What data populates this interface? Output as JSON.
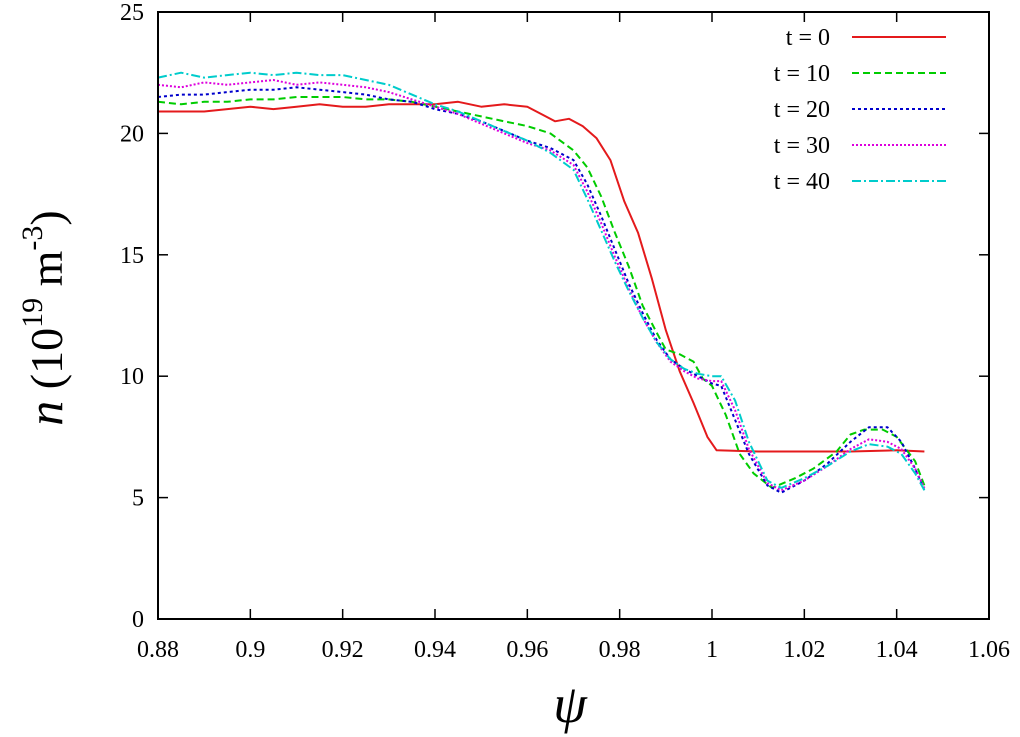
{
  "chart_data": {
    "type": "line",
    "xlabel": "ψ",
    "ylabel": {
      "var": "n",
      "open": " (10",
      "exp1": "19",
      "mid": " m",
      "exp2": "-3",
      "close": ")"
    },
    "xlim": [
      0.88,
      1.06
    ],
    "ylim": [
      0,
      25
    ],
    "xticks": [
      0.88,
      0.9,
      0.92,
      0.94,
      0.96,
      0.98,
      1,
      1.02,
      1.04,
      1.06
    ],
    "xtick_labels": [
      "0.88",
      "0.9",
      "0.92",
      "0.94",
      "0.96",
      "0.98",
      "1",
      "1.02",
      "1.04",
      "1.06"
    ],
    "yticks": [
      0,
      5,
      10,
      15,
      20,
      25
    ],
    "ytick_labels": [
      "0",
      "5",
      "10",
      "15",
      "20",
      "25"
    ],
    "grid": false,
    "legend_position": "top-right",
    "series": [
      {
        "name": "t = 0",
        "color": "#e41a1c",
        "dash": "solid",
        "points": [
          [
            0.88,
            20.9
          ],
          [
            0.885,
            20.9
          ],
          [
            0.89,
            20.9
          ],
          [
            0.895,
            21.0
          ],
          [
            0.9,
            21.1
          ],
          [
            0.905,
            21.0
          ],
          [
            0.91,
            21.1
          ],
          [
            0.915,
            21.2
          ],
          [
            0.92,
            21.1
          ],
          [
            0.925,
            21.1
          ],
          [
            0.93,
            21.2
          ],
          [
            0.935,
            21.2
          ],
          [
            0.94,
            21.2
          ],
          [
            0.945,
            21.3
          ],
          [
            0.95,
            21.1
          ],
          [
            0.955,
            21.2
          ],
          [
            0.96,
            21.1
          ],
          [
            0.963,
            20.8
          ],
          [
            0.966,
            20.5
          ],
          [
            0.969,
            20.6
          ],
          [
            0.972,
            20.3
          ],
          [
            0.975,
            19.8
          ],
          [
            0.978,
            18.9
          ],
          [
            0.981,
            17.2
          ],
          [
            0.984,
            15.9
          ],
          [
            0.987,
            14.0
          ],
          [
            0.99,
            11.9
          ],
          [
            0.993,
            10.2
          ],
          [
            0.996,
            8.9
          ],
          [
            0.999,
            7.5
          ],
          [
            1.001,
            6.95
          ],
          [
            1.01,
            6.9
          ],
          [
            1.02,
            6.9
          ],
          [
            1.03,
            6.9
          ],
          [
            1.04,
            6.95
          ],
          [
            1.046,
            6.9
          ]
        ]
      },
      {
        "name": "t = 10",
        "color": "#00cc00",
        "dash": "7,4",
        "points": [
          [
            0.88,
            21.3
          ],
          [
            0.885,
            21.2
          ],
          [
            0.89,
            21.3
          ],
          [
            0.895,
            21.3
          ],
          [
            0.9,
            21.4
          ],
          [
            0.905,
            21.4
          ],
          [
            0.91,
            21.5
          ],
          [
            0.915,
            21.5
          ],
          [
            0.92,
            21.5
          ],
          [
            0.925,
            21.4
          ],
          [
            0.93,
            21.4
          ],
          [
            0.935,
            21.3
          ],
          [
            0.94,
            21.1
          ],
          [
            0.945,
            20.9
          ],
          [
            0.95,
            20.7
          ],
          [
            0.955,
            20.5
          ],
          [
            0.96,
            20.3
          ],
          [
            0.965,
            20.0
          ],
          [
            0.97,
            19.3
          ],
          [
            0.973,
            18.6
          ],
          [
            0.976,
            17.4
          ],
          [
            0.979,
            15.9
          ],
          [
            0.982,
            14.5
          ],
          [
            0.985,
            12.9
          ],
          [
            0.988,
            11.8
          ],
          [
            0.99,
            11.1
          ],
          [
            0.993,
            10.9
          ],
          [
            0.996,
            10.6
          ],
          [
            0.998,
            9.9
          ],
          [
            1.0,
            9.6
          ],
          [
            1.003,
            8.4
          ],
          [
            1.006,
            6.8
          ],
          [
            1.009,
            6.0
          ],
          [
            1.013,
            5.4
          ],
          [
            1.018,
            5.8
          ],
          [
            1.022,
            6.2
          ],
          [
            1.027,
            6.9
          ],
          [
            1.03,
            7.6
          ],
          [
            1.033,
            7.8
          ],
          [
            1.037,
            7.8
          ],
          [
            1.04,
            7.5
          ],
          [
            1.044,
            6.5
          ],
          [
            1.046,
            5.5
          ]
        ]
      },
      {
        "name": "t = 20",
        "color": "#0000cc",
        "dash": "3,3",
        "points": [
          [
            0.88,
            21.5
          ],
          [
            0.885,
            21.6
          ],
          [
            0.89,
            21.6
          ],
          [
            0.895,
            21.7
          ],
          [
            0.9,
            21.8
          ],
          [
            0.905,
            21.8
          ],
          [
            0.91,
            21.9
          ],
          [
            0.915,
            21.8
          ],
          [
            0.92,
            21.7
          ],
          [
            0.925,
            21.6
          ],
          [
            0.93,
            21.4
          ],
          [
            0.935,
            21.3
          ],
          [
            0.94,
            21.0
          ],
          [
            0.945,
            20.8
          ],
          [
            0.95,
            20.5
          ],
          [
            0.955,
            20.1
          ],
          [
            0.96,
            19.7
          ],
          [
            0.965,
            19.4
          ],
          [
            0.97,
            18.9
          ],
          [
            0.973,
            17.9
          ],
          [
            0.976,
            16.6
          ],
          [
            0.979,
            15.2
          ],
          [
            0.982,
            13.8
          ],
          [
            0.985,
            12.6
          ],
          [
            0.988,
            11.5
          ],
          [
            0.991,
            10.7
          ],
          [
            0.994,
            10.3
          ],
          [
            0.997,
            10.0
          ],
          [
            1.0,
            9.7
          ],
          [
            1.002,
            9.6
          ],
          [
            1.005,
            8.2
          ],
          [
            1.008,
            6.8
          ],
          [
            1.012,
            5.5
          ],
          [
            1.015,
            5.2
          ],
          [
            1.02,
            5.7
          ],
          [
            1.025,
            6.4
          ],
          [
            1.03,
            7.3
          ],
          [
            1.034,
            7.9
          ],
          [
            1.038,
            7.9
          ],
          [
            1.041,
            7.3
          ],
          [
            1.044,
            6.2
          ],
          [
            1.046,
            5.3
          ]
        ]
      },
      {
        "name": "t = 30",
        "color": "#dd00dd",
        "dash": "2,2",
        "points": [
          [
            0.88,
            22.0
          ],
          [
            0.885,
            21.9
          ],
          [
            0.89,
            22.1
          ],
          [
            0.895,
            22.0
          ],
          [
            0.9,
            22.1
          ],
          [
            0.905,
            22.2
          ],
          [
            0.91,
            22.0
          ],
          [
            0.915,
            22.1
          ],
          [
            0.92,
            22.0
          ],
          [
            0.925,
            21.9
          ],
          [
            0.93,
            21.7
          ],
          [
            0.935,
            21.4
          ],
          [
            0.94,
            21.1
          ],
          [
            0.945,
            20.8
          ],
          [
            0.95,
            20.4
          ],
          [
            0.955,
            20.0
          ],
          [
            0.96,
            19.6
          ],
          [
            0.965,
            19.3
          ],
          [
            0.97,
            18.7
          ],
          [
            0.973,
            17.6
          ],
          [
            0.976,
            16.3
          ],
          [
            0.979,
            14.9
          ],
          [
            0.982,
            13.6
          ],
          [
            0.985,
            12.4
          ],
          [
            0.988,
            11.4
          ],
          [
            0.991,
            10.6
          ],
          [
            0.994,
            10.2
          ],
          [
            0.997,
            9.9
          ],
          [
            1.0,
            9.8
          ],
          [
            1.002,
            9.8
          ],
          [
            1.005,
            8.6
          ],
          [
            1.008,
            7.0
          ],
          [
            1.012,
            5.6
          ],
          [
            1.015,
            5.3
          ],
          [
            1.02,
            5.7
          ],
          [
            1.025,
            6.3
          ],
          [
            1.03,
            7.0
          ],
          [
            1.034,
            7.4
          ],
          [
            1.038,
            7.3
          ],
          [
            1.041,
            7.0
          ],
          [
            1.044,
            6.2
          ],
          [
            1.046,
            5.4
          ]
        ]
      },
      {
        "name": "t = 40",
        "color": "#00cccc",
        "dash": "9,3,2,3",
        "points": [
          [
            0.88,
            22.3
          ],
          [
            0.885,
            22.5
          ],
          [
            0.89,
            22.3
          ],
          [
            0.895,
            22.4
          ],
          [
            0.9,
            22.5
          ],
          [
            0.905,
            22.4
          ],
          [
            0.91,
            22.5
          ],
          [
            0.915,
            22.4
          ],
          [
            0.92,
            22.4
          ],
          [
            0.925,
            22.2
          ],
          [
            0.93,
            22.0
          ],
          [
            0.935,
            21.6
          ],
          [
            0.94,
            21.2
          ],
          [
            0.945,
            20.9
          ],
          [
            0.95,
            20.5
          ],
          [
            0.955,
            20.1
          ],
          [
            0.96,
            19.7
          ],
          [
            0.965,
            19.2
          ],
          [
            0.97,
            18.5
          ],
          [
            0.973,
            17.3
          ],
          [
            0.976,
            16.0
          ],
          [
            0.979,
            14.7
          ],
          [
            0.982,
            13.5
          ],
          [
            0.985,
            12.4
          ],
          [
            0.988,
            11.4
          ],
          [
            0.991,
            10.7
          ],
          [
            0.994,
            10.3
          ],
          [
            0.997,
            10.1
          ],
          [
            1.0,
            10.0
          ],
          [
            1.002,
            10.0
          ],
          [
            1.005,
            9.0
          ],
          [
            1.008,
            7.3
          ],
          [
            1.012,
            5.7
          ],
          [
            1.015,
            5.4
          ],
          [
            1.02,
            5.8
          ],
          [
            1.025,
            6.3
          ],
          [
            1.03,
            6.9
          ],
          [
            1.034,
            7.2
          ],
          [
            1.038,
            7.1
          ],
          [
            1.041,
            6.8
          ],
          [
            1.044,
            6.0
          ],
          [
            1.046,
            5.3
          ]
        ]
      }
    ]
  }
}
